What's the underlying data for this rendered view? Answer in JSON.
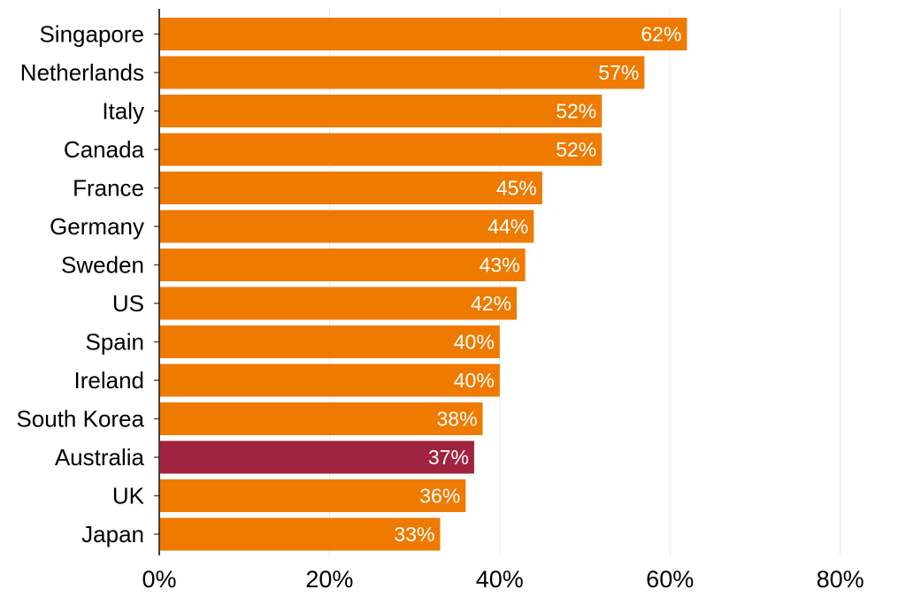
{
  "chart_data": {
    "type": "bar",
    "orientation": "horizontal",
    "title": "",
    "xlabel": "",
    "ylabel": "",
    "categories": [
      "Singapore",
      "Netherlands",
      "Italy",
      "Canada",
      "France",
      "Germany",
      "Sweden",
      "US",
      "Spain",
      "Ireland",
      "South Korea",
      "Australia",
      "UK",
      "Japan"
    ],
    "values": [
      62,
      57,
      52,
      52,
      45,
      44,
      43,
      42,
      40,
      40,
      38,
      37,
      36,
      33
    ],
    "value_labels": [
      "62%",
      "57%",
      "52%",
      "52%",
      "45%",
      "44%",
      "43%",
      "42%",
      "40%",
      "40%",
      "38%",
      "37%",
      "36%",
      "33%"
    ],
    "highlight": "Australia",
    "xlim": [
      0,
      85
    ],
    "xticks": [
      0,
      20,
      40,
      60,
      80
    ],
    "xtick_labels": [
      "0%",
      "20%",
      "40%",
      "60%",
      "80%"
    ],
    "grid": "vertical",
    "colors": {
      "default": "#EE7A00",
      "highlight": "#A0233F"
    }
  }
}
